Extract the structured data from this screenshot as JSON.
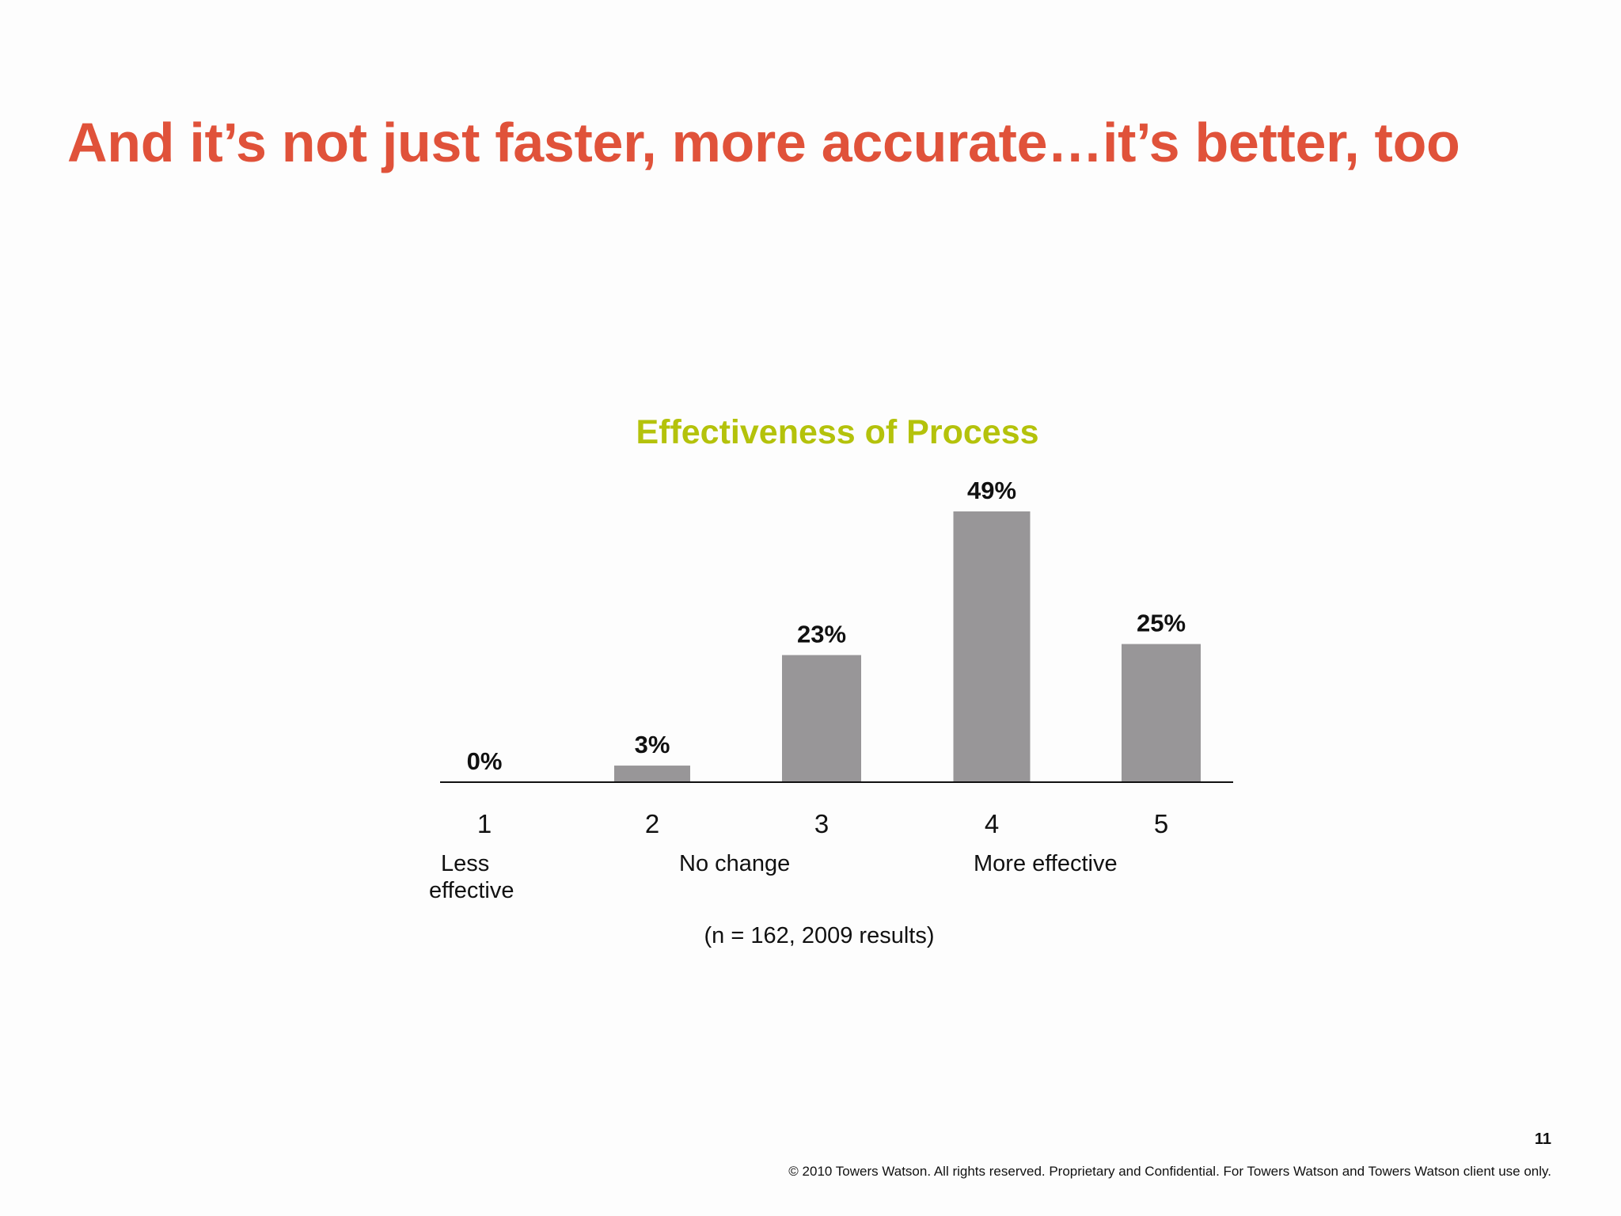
{
  "slide": {
    "title": "And it’s not just faster, more accurate…it’s better, too",
    "page_number": "11",
    "copyright": "© 2010 Towers Watson. All rights reserved. Proprietary and Confidential. For Towers Watson and Towers Watson client use only.",
    "title_color": "#e0523a"
  },
  "chart_data": {
    "type": "bar",
    "title": "Effectiveness of Process",
    "categories": [
      "1",
      "2",
      "3",
      "4",
      "5"
    ],
    "values": [
      0,
      3,
      23,
      49,
      25
    ],
    "data_labels": [
      "0%",
      "3%",
      "23%",
      "49%",
      "25%"
    ],
    "scale_anchors": [
      {
        "text": "Less\neffective",
        "category": "1"
      },
      {
        "text": "No change",
        "category": "2-3"
      },
      {
        "text": "More effective",
        "category": "4-5"
      }
    ],
    "note": "(n = 162, 2009 results)",
    "ylim": [
      0,
      49
    ],
    "grid": false,
    "legend": "none",
    "bar_color": "#989698",
    "title_color": "#b4c20b"
  }
}
